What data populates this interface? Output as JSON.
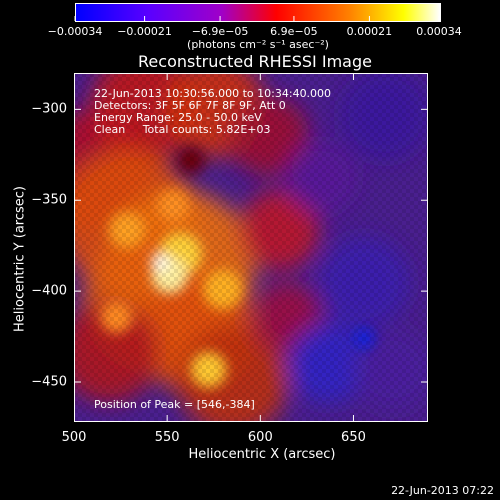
{
  "chart_data": {
    "type": "heatmap",
    "title": "Reconstructed RHESSI Image",
    "xlabel": "Heliocentric X (arcsec)",
    "ylabel": "Heliocentric Y (arcsec)",
    "xlim": [
      500,
      690
    ],
    "ylim": [
      -472,
      -280
    ],
    "x_ticks": [
      "500",
      "550",
      "600",
      "650"
    ],
    "x_tick_values": [
      500,
      550,
      600,
      650
    ],
    "y_ticks": [
      "-300",
      "-350",
      "-400",
      "-450"
    ],
    "y_tick_values": [
      -300,
      -350,
      -400,
      -450
    ],
    "colorbar": {
      "ticks": [
        "-0.00034",
        "-0.00021",
        "-6.9e-05",
        "6.9e-05",
        "0.00021",
        "0.00034"
      ],
      "tick_values": [
        -0.00034,
        -0.00021,
        -6.9e-05,
        6.9e-05,
        0.00021,
        0.00034
      ],
      "range": [
        -0.00034,
        0.00034
      ],
      "units": "(photons cm⁻² s⁻¹ asec⁻²)",
      "colors": [
        "#0000ff",
        "#7f00ff",
        "#ff0000",
        "#ff8000",
        "#ffffff"
      ]
    },
    "peak": [
      546,
      -384
    ],
    "annotations": [
      "22-Jun-2013 10:30:56.000 to 10:34:40.000",
      "Detectors: 3F 5F 6F 7F 8F 9F, Att 0",
      "Energy Range: 25.0 - 50.0 keV",
      "Clean     Total counts: 5.82E+03"
    ],
    "peak_label": "Position of Peak = [546,-384]"
  },
  "footer": {
    "timestamp": "22-Jun-2013 07:22"
  }
}
